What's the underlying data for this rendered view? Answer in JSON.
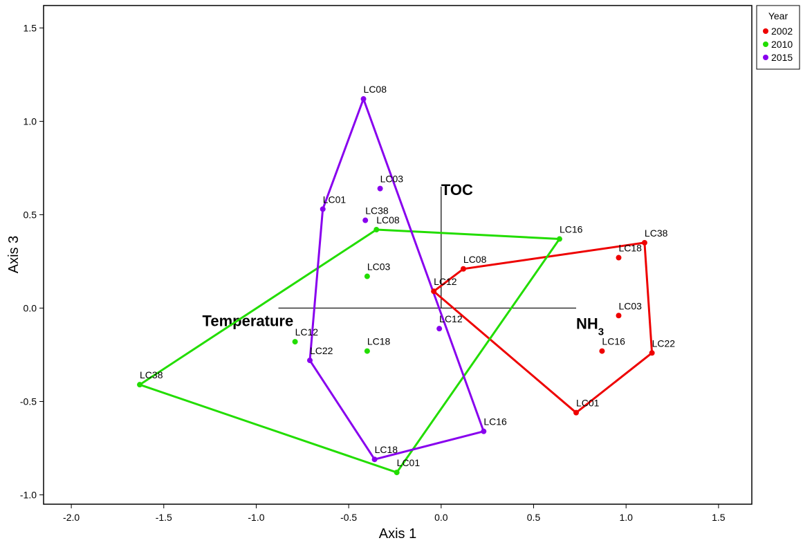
{
  "chart_data": {
    "type": "scatter",
    "xlabel": "Axis 1",
    "ylabel": "Axis 3",
    "xlim": [
      -2.15,
      1.68
    ],
    "ylim": [
      -1.05,
      1.62
    ],
    "xticks": [
      "-2.0",
      "-1.5",
      "-1.0",
      "-0.5",
      "0.0",
      "0.5",
      "1.0",
      "1.5"
    ],
    "xtick_values": [
      -2.0,
      -1.5,
      -1.0,
      -0.5,
      0.0,
      0.5,
      1.0,
      1.5
    ],
    "yticks": [
      "-1.0",
      "-0.5",
      "0.0",
      "0.5",
      "1.0",
      "1.5"
    ],
    "ytick_values": [
      -1.0,
      -0.5,
      0.0,
      0.5,
      1.0,
      1.5
    ],
    "grid": false,
    "legend": {
      "title": "Year",
      "placement": "top-right outside"
    },
    "series": [
      {
        "name": "2002",
        "color": "#ee0000",
        "points": [
          {
            "label": "LC08",
            "x": 0.12,
            "y": 0.21
          },
          {
            "label": "LC12",
            "x": -0.04,
            "y": 0.09
          },
          {
            "label": "LC38",
            "x": 1.1,
            "y": 0.35
          },
          {
            "label": "LC18",
            "x": 0.96,
            "y": 0.27
          },
          {
            "label": "LC03",
            "x": 0.96,
            "y": -0.04
          },
          {
            "label": "LC16",
            "x": 0.87,
            "y": -0.23
          },
          {
            "label": "LC22",
            "x": 1.14,
            "y": -0.24
          },
          {
            "label": "LC01",
            "x": 0.73,
            "y": -0.56
          }
        ],
        "hull": [
          "LC08",
          "LC38",
          "LC22",
          "LC01",
          "LC12"
        ]
      },
      {
        "name": "2010",
        "color": "#22dd00",
        "points": [
          {
            "label": "LC08",
            "x": -0.35,
            "y": 0.42
          },
          {
            "label": "LC16",
            "x": 0.64,
            "y": 0.37
          },
          {
            "label": "LC03",
            "x": -0.4,
            "y": 0.17
          },
          {
            "label": "LC12",
            "x": -0.79,
            "y": -0.18
          },
          {
            "label": "LC18",
            "x": -0.4,
            "y": -0.23
          },
          {
            "label": "LC38",
            "x": -1.63,
            "y": -0.41
          },
          {
            "label": "LC01",
            "x": -0.24,
            "y": -0.88
          }
        ],
        "hull": [
          "LC08",
          "LC16",
          "LC01",
          "LC38"
        ]
      },
      {
        "name": "2015",
        "color": "#8800ee",
        "points": [
          {
            "label": "LC08",
            "x": -0.42,
            "y": 1.12
          },
          {
            "label": "LC03",
            "x": -0.33,
            "y": 0.64
          },
          {
            "label": "LC01",
            "x": -0.64,
            "y": 0.53
          },
          {
            "label": "LC38",
            "x": -0.41,
            "y": 0.47
          },
          {
            "label": "LC12",
            "x": -0.01,
            "y": -0.11
          },
          {
            "label": "LC22",
            "x": -0.71,
            "y": -0.28
          },
          {
            "label": "LC16",
            "x": 0.23,
            "y": -0.66
          },
          {
            "label": "LC18",
            "x": -0.36,
            "y": -0.81
          }
        ],
        "hull": [
          "LC08",
          "LC16",
          "LC18",
          "LC22",
          "LC01"
        ]
      }
    ],
    "vectors": [
      {
        "label": "TOC",
        "x": 0.0,
        "y": 0.65
      },
      {
        "label": "Temperature",
        "x": -0.88,
        "y": 0.0
      },
      {
        "label": "NH3",
        "label_main": "NH",
        "label_sub": "3",
        "x": 0.73,
        "y": 0.0
      }
    ]
  }
}
